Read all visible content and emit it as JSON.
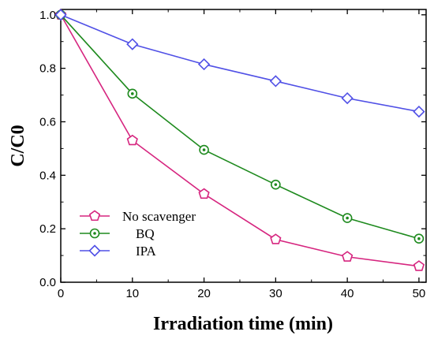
{
  "chart_data": {
    "type": "line",
    "xlabel": "Irradiation time (min)",
    "ylabel": "C/C0",
    "xlim": [
      0,
      51
    ],
    "ylim": [
      0,
      1.02
    ],
    "x_ticks": [
      0,
      10,
      20,
      30,
      40,
      50
    ],
    "y_ticks": [
      0.0,
      0.2,
      0.4,
      0.6,
      0.8,
      1.0
    ],
    "x_tick_labels": [
      "0",
      "10",
      "20",
      "30",
      "40",
      "50"
    ],
    "y_tick_labels": [
      "0.0",
      "0.2",
      "0.4",
      "0.6",
      "0.8",
      "1.0"
    ],
    "legend_position": "bottom-left",
    "x": [
      0,
      10,
      20,
      30,
      40,
      50
    ],
    "series": [
      {
        "name": "No scavenger",
        "values": [
          1.0,
          0.53,
          0.33,
          0.16,
          0.095,
          0.06
        ],
        "color": "#d6257f",
        "marker": "pentagon"
      },
      {
        "name": "BQ",
        "values": [
          1.0,
          0.705,
          0.495,
          0.365,
          0.24,
          0.163
        ],
        "color": "#1e8a1e",
        "marker": "circle-dot"
      },
      {
        "name": "IPA",
        "values": [
          1.0,
          0.89,
          0.815,
          0.752,
          0.688,
          0.638
        ],
        "color": "#5050e6",
        "marker": "diamond"
      }
    ]
  }
}
